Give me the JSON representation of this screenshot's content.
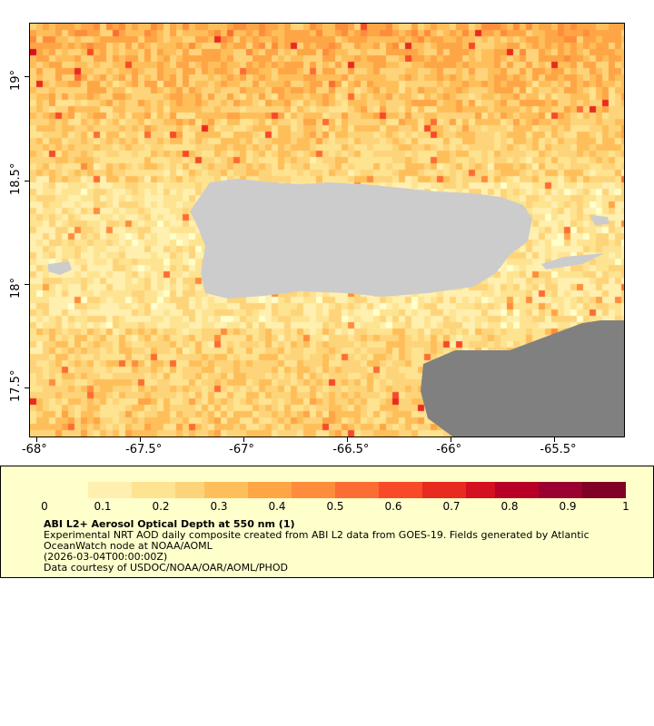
{
  "map": {
    "lon_ticks": [
      "-68°",
      "-67.5°",
      "-67°",
      "-66.5°",
      "-66°",
      "-65.5°"
    ],
    "lat_ticks": [
      "19°",
      "18.5°",
      "18°",
      "17.5°"
    ],
    "lon_values": [
      -68,
      -67.5,
      -67,
      -66.5,
      -66,
      -65.5
    ],
    "lat_values": [
      19,
      18.5,
      18,
      17.5
    ],
    "lon_range": [
      -68.035,
      -65.16
    ],
    "lat_range": [
      17.26,
      19.26
    ],
    "land_color": "#cccccc",
    "nodata_color": "#808080"
  },
  "legend": {
    "colorbar_ticks": [
      "0",
      "0.1",
      "0.2",
      "0.3",
      "0.4",
      "0.5",
      "0.6",
      "0.7",
      "0.8",
      "0.9",
      "1"
    ],
    "range": [
      0,
      1
    ],
    "colors": [
      "#ffffcc",
      "#fff0b0",
      "#fee391",
      "#fed47a",
      "#febf5a",
      "#fea546",
      "#fd8d3c",
      "#fc6d33",
      "#f84a27",
      "#e82a20",
      "#d41020",
      "#b80026",
      "#9a0030",
      "#800026"
    ],
    "title": "ABI L2+ Aerosol Optical Depth at 550 nm (1)",
    "line1": "Experimental NRT AOD daily composite created from ABI L2 data from GOES-19. Fields generated by Atlantic",
    "line2": "OceanWatch node at NOAA/AOML",
    "line3": "(2026-03-04T00:00:00Z)",
    "line4": "Data courtesy of USDOC/NOAA/OAR/AOML/PHOD"
  }
}
